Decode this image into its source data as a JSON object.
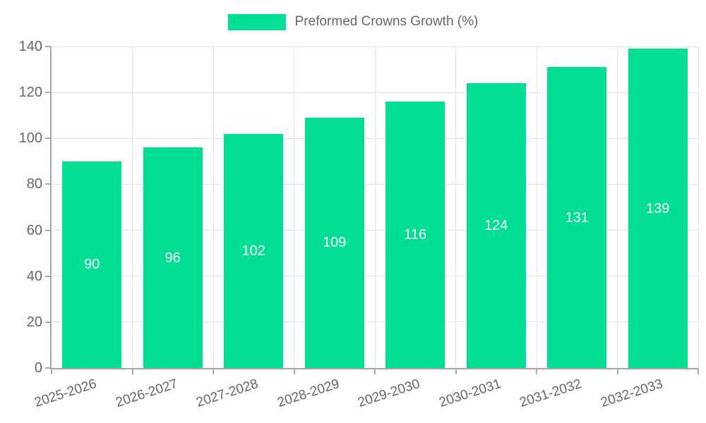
{
  "legend": {
    "label": "Preformed Crowns Growth (%)"
  },
  "colors": {
    "bar": "#00de94",
    "value_label": "#ffffff",
    "axis_text": "#666666",
    "gridline": "#e4e4e4",
    "axis_line": "#a6a6a6"
  },
  "chart_data": {
    "type": "bar",
    "title": "Preformed Crowns Growth (%)",
    "categories": [
      "2025-2026",
      "2026-2027",
      "2027-2028",
      "2028-2029",
      "2029-2030",
      "2030-2031",
      "2031-2032",
      "2032-2033"
    ],
    "series": [
      {
        "name": "Preformed Crowns Growth (%)",
        "values": [
          90,
          96,
          102,
          109,
          116,
          124,
          131,
          139
        ]
      }
    ],
    "values": [
      90,
      96,
      102,
      109,
      116,
      124,
      131,
      139
    ],
    "value_labels": [
      "90",
      "96",
      "102",
      "109",
      "116",
      "124",
      "131",
      "139"
    ],
    "xlabel": "",
    "ylabel": "",
    "ylim": [
      0,
      140
    ],
    "yticks": [
      0,
      20,
      40,
      60,
      80,
      100,
      120,
      140
    ],
    "ytick_labels": [
      "0",
      "20",
      "40",
      "60",
      "80",
      "100",
      "120",
      "140"
    ],
    "grid": true,
    "legend_position": "top-center",
    "value_label_position": "bar-center",
    "x_label_rotation_deg": -18
  }
}
